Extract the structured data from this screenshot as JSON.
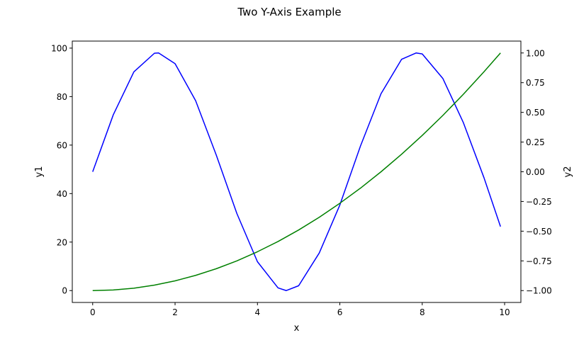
{
  "chart_data": {
    "type": "line",
    "title": "Two Y-Axis Example",
    "xlabel": "x",
    "ylabel_left": "y1",
    "ylabel_right": "y2",
    "xlim": [
      -0.495,
      10.395
    ],
    "ylim_left": [
      -4.9,
      102.9
    ],
    "ylim_right": [
      -1.1,
      1.1
    ],
    "x_ticks": [
      0,
      2,
      4,
      6,
      8,
      10
    ],
    "y_left_ticks": [
      0,
      20,
      40,
      60,
      80,
      100
    ],
    "y_right_ticks": [
      -1.0,
      -0.75,
      -0.5,
      -0.25,
      0.0,
      0.25,
      0.5,
      0.75,
      1.0
    ],
    "x_tick_labels": [
      "0",
      "2",
      "4",
      "6",
      "8",
      "10"
    ],
    "y_left_tick_labels": [
      "0",
      "20",
      "40",
      "60",
      "80",
      "100"
    ],
    "y_right_tick_labels": [
      "−1.00",
      "−0.75",
      "−0.50",
      "−0.25",
      "0.00",
      "0.25",
      "0.50",
      "0.75",
      "1.00"
    ],
    "grid": false,
    "series": [
      {
        "axis": "left",
        "color": "#0000ff",
        "x": [
          0,
          0.5,
          1.0,
          1.5,
          1.6,
          2.0,
          2.5,
          3.0,
          3.5,
          4.0,
          4.5,
          4.7,
          5.0,
          5.5,
          6.0,
          6.5,
          7.0,
          7.5,
          7.85,
          8.0,
          8.5,
          9.0,
          9.5,
          9.9
        ],
        "y": [
          49.0,
          72.5,
          90.2,
          97.9,
          98.0,
          93.6,
          78.3,
          55.9,
          31.8,
          11.9,
          1.1,
          0.0,
          2.0,
          15.5,
          35.3,
          59.6,
          81.2,
          95.4,
          98.0,
          97.6,
          87.5,
          69.2,
          46.5,
          26.4
        ]
      },
      {
        "axis": "right",
        "color": "#008000",
        "x": [
          0,
          0.5,
          1.0,
          1.5,
          2.0,
          2.5,
          3.0,
          3.5,
          4.0,
          4.5,
          5.0,
          5.5,
          6.0,
          6.5,
          7.0,
          7.5,
          8.0,
          8.5,
          9.0,
          9.5,
          9.9
        ],
        "y": [
          -1.0,
          -0.995,
          -0.98,
          -0.954,
          -0.918,
          -0.872,
          -0.816,
          -0.75,
          -0.673,
          -0.587,
          -0.49,
          -0.383,
          -0.265,
          -0.138,
          0.0,
          0.148,
          0.306,
          0.474,
          0.653,
          0.842,
          1.0
        ]
      }
    ]
  }
}
